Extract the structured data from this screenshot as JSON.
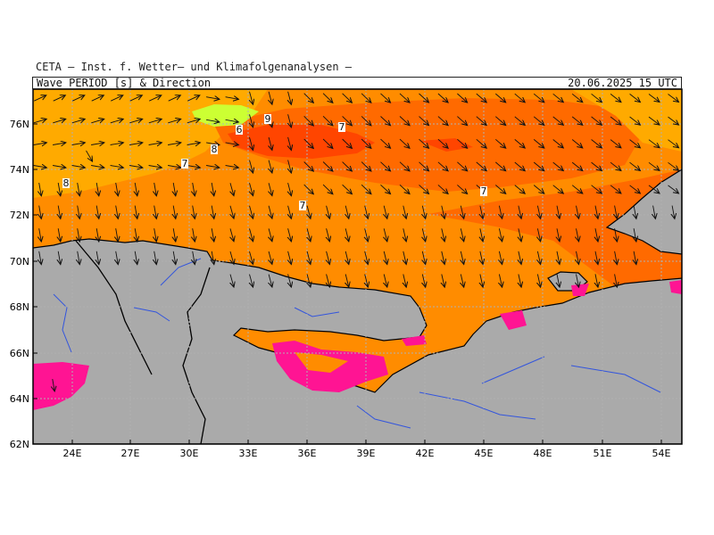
{
  "header": {
    "organization": "CETA — Inst. f. Wetter— und Klimafolgenanalysen —",
    "title": "Wave PERIOD [s] & Direction",
    "datetime": "20.06.2025 15 UTC"
  },
  "axes": {
    "lat_ticks": [
      "76N",
      "74N",
      "72N",
      "70N",
      "68N",
      "66N",
      "64N",
      "62N"
    ],
    "lon_ticks": [
      "24E",
      "27E",
      "30E",
      "33E",
      "36E",
      "39E",
      "42E",
      "45E",
      "48E",
      "51E",
      "54E"
    ]
  },
  "contour_labels": [
    {
      "text": "9"
    },
    {
      "text": "6"
    },
    {
      "text": "7"
    },
    {
      "text": "8"
    },
    {
      "text": "7"
    },
    {
      "text": "8"
    },
    {
      "text": "7"
    },
    {
      "text": "7"
    }
  ],
  "colors": {
    "land": "#aaaaaa",
    "p5": "#ff4500",
    "p6": "#ff6a00",
    "p7": "#ff8c00",
    "p8": "#ffaa00",
    "p9": "#ccff33",
    "low": "#ff1493",
    "coast": "#000000",
    "river": "#3355dd",
    "grid": "#b0b0b0"
  }
}
